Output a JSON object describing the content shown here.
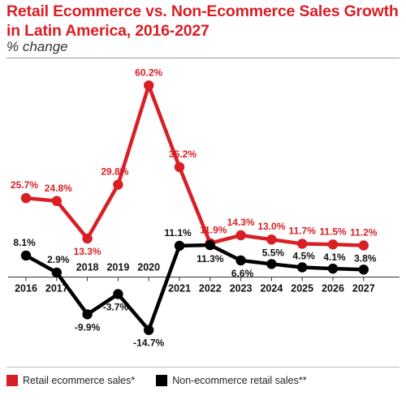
{
  "title": "Retail Ecommerce vs. Non-Ecommerce Sales Growth in Latin America, 2016-2027",
  "subtitle": "% change",
  "colors": {
    "ecommerce": "#d81f26",
    "non_ecommerce": "#000000",
    "title": "#d81f26"
  },
  "chart_data": {
    "type": "line",
    "title": "Retail Ecommerce vs. Non-Ecommerce Sales Growth in Latin America, 2016-2027",
    "subtitle": "% change",
    "xlabel": "",
    "ylabel": "",
    "x": [
      "2016",
      "2017",
      "2018",
      "2019",
      "2020",
      "2021",
      "2022",
      "2023",
      "2024",
      "2025",
      "2026",
      "2027"
    ],
    "ylim": [
      -18,
      64
    ],
    "grid": false,
    "legend_position": "bottom",
    "series": [
      {
        "name": "Retail ecommerce sales*",
        "color": "#d81f26",
        "values": [
          25.7,
          24.8,
          13.3,
          29.8,
          60.2,
          35.2,
          11.9,
          14.3,
          13.0,
          11.7,
          11.5,
          11.2
        ],
        "labels": [
          "25.7%",
          "24.8%",
          "13.3%",
          "29.8%",
          "60.2%",
          "35.2%",
          "11.9%",
          "14.3%",
          "13.0%",
          "11.7%",
          "11.5%",
          "11.2%"
        ]
      },
      {
        "name": "Non-ecommerce retail sales**",
        "color": "#000000",
        "values": [
          8.1,
          2.9,
          -9.9,
          -3.7,
          -14.7,
          11.1,
          11.3,
          6.6,
          5.5,
          4.5,
          4.1,
          3.8
        ],
        "labels": [
          "8.1%",
          "2.9%",
          "-9.9%",
          "-3.7%",
          "-14.7%",
          "11.1%",
          "11.3%",
          "6.6%",
          "5.5%",
          "4.5%",
          "4.1%",
          "3.8%"
        ]
      }
    ]
  }
}
